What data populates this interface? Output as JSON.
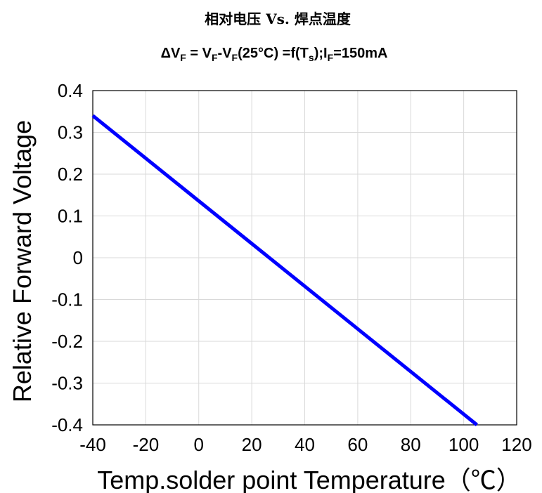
{
  "chart_data": {
    "type": "line",
    "title": "相对电压 Vs. 焊点温度",
    "subtitle_parts": [
      "ΔV",
      "F",
      " = V",
      "F",
      "-V",
      "F",
      "(25°C) =f(T",
      "s",
      ");I",
      "F",
      "=150mA"
    ],
    "xlabel": "Temp.solder point Temperature（℃）",
    "ylabel": "Relative Forward Voltage",
    "xlim": [
      -40,
      120
    ],
    "ylim": [
      -0.4,
      0.4
    ],
    "x_ticks": [
      -40,
      -20,
      0,
      20,
      40,
      60,
      80,
      100,
      120
    ],
    "x_tick_labels": [
      "-40",
      "-20",
      "0",
      "20",
      "40",
      "60",
      "80",
      "100",
      "120"
    ],
    "y_ticks": [
      0.4,
      0.3,
      0.2,
      0.1,
      0,
      -0.1,
      -0.2,
      -0.3,
      -0.4
    ],
    "y_tick_labels": [
      "0.4",
      "0.3",
      "0.2",
      "0.1",
      "0",
      "-0.1",
      "-0.2",
      "-0.3",
      "-0.4"
    ],
    "grid": true,
    "series": [
      {
        "x": [
          -40,
          105
        ],
        "y": [
          0.34,
          -0.4
        ],
        "color": "#0000ff"
      }
    ]
  }
}
